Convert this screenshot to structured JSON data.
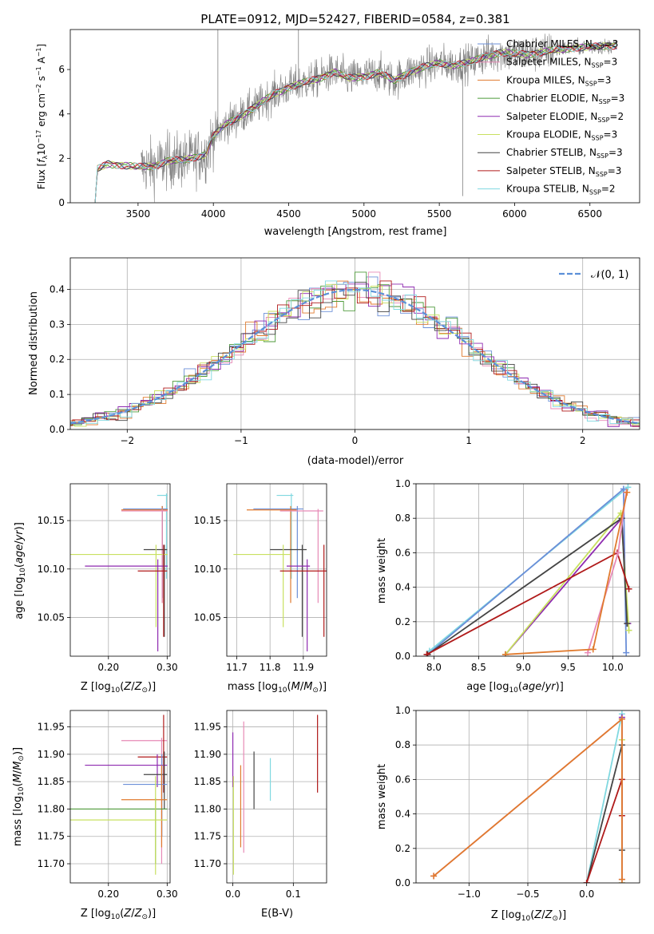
{
  "colors": {
    "Chabrier MILES": "#6b8fd8",
    "Salpeter MILES": "#e78ab6",
    "Kroupa MILES": "#e07a2e",
    "Chabrier ELODIE": "#4e9a3a",
    "Salpeter ELODIE": "#8e2ab0",
    "Kroupa ELODIE": "#c8e060",
    "Chabrier STELIB": "#444444",
    "Salpeter STELIB": "#b01a1a",
    "Kroupa STELIB": "#80d8e0",
    "data": "#808080",
    "normal": "#5b8fd8"
  },
  "chart_data": [
    {
      "id": "spectrum",
      "type": "line",
      "title": "PLATE=0912, MJD=52427, FIBERID=0584, z=0.381",
      "xlabel": "wavelength [Angstrom, rest frame]",
      "ylabel": "Flux [f_λ10⁻¹⁷ erg cm⁻² s⁻¹ A⁻¹]",
      "xlim": [
        3050,
        6830
      ],
      "ylim": [
        0,
        7.8
      ],
      "xticks": [
        3500,
        4000,
        4500,
        5000,
        5500,
        6000,
        6500
      ],
      "yticks": [
        0,
        2,
        4,
        6
      ],
      "legend_position": "top-right",
      "legend": [
        {
          "model": "Chabrier MILES",
          "pre": "Chabrier MILES, N",
          "sub": "SSP",
          "post": "=3"
        },
        {
          "model": "Salpeter MILES",
          "pre": "Salpeter MILES, N",
          "sub": "SSP",
          "post": "=3"
        },
        {
          "model": "Kroupa MILES",
          "pre": "Kroupa MILES, N",
          "sub": "SSP",
          "post": "=3"
        },
        {
          "model": "Chabrier ELODIE",
          "pre": "Chabrier ELODIE, N",
          "sub": "SSP",
          "post": "=3"
        },
        {
          "model": "Salpeter ELODIE",
          "pre": "Salpeter ELODIE, N",
          "sub": "SSP",
          "post": "=2"
        },
        {
          "model": "Kroupa ELODIE",
          "pre": "Kroupa ELODIE, N",
          "sub": "SSP",
          "post": "=3"
        },
        {
          "model": "Chabrier STELIB",
          "pre": "Chabrier STELIB, N",
          "sub": "SSP",
          "post": "=3"
        },
        {
          "model": "Salpeter STELIB",
          "pre": "Salpeter STELIB, N",
          "sub": "SSP",
          "post": "=3"
        },
        {
          "model": "Kroupa STELIB",
          "pre": "Kroupa STELIB, N",
          "sub": "SSP",
          "post": "=2"
        }
      ],
      "continuum": [
        [
          3215,
          0
        ],
        [
          3230,
          1.5
        ],
        [
          3300,
          1.75
        ],
        [
          3400,
          1.7
        ],
        [
          3500,
          1.6
        ],
        [
          3600,
          1.65
        ],
        [
          3700,
          1.9
        ],
        [
          3800,
          1.9
        ],
        [
          3900,
          2.1
        ],
        [
          3950,
          2.2
        ],
        [
          4000,
          3.0
        ],
        [
          4100,
          3.6
        ],
        [
          4200,
          4.0
        ],
        [
          4300,
          4.4
        ],
        [
          4400,
          4.9
        ],
        [
          4500,
          5.2
        ],
        [
          4600,
          5.4
        ],
        [
          4700,
          5.6
        ],
        [
          4800,
          5.9
        ],
        [
          4900,
          5.6
        ],
        [
          5000,
          5.7
        ],
        [
          5100,
          5.85
        ],
        [
          5200,
          5.5
        ],
        [
          5300,
          5.9
        ],
        [
          5400,
          6.1
        ],
        [
          5500,
          6.3
        ],
        [
          5600,
          6.2
        ],
        [
          5700,
          6.3
        ],
        [
          5800,
          6.6
        ],
        [
          5900,
          6.75
        ],
        [
          6000,
          6.7
        ],
        [
          6100,
          6.7
        ],
        [
          6200,
          6.8
        ],
        [
          6300,
          6.9
        ],
        [
          6400,
          7.0
        ],
        [
          6500,
          7.0
        ],
        [
          6600,
          7.05
        ],
        [
          6680,
          7.1
        ]
      ],
      "data_range": [
        3520,
        6260
      ],
      "spikes": [
        [
          4030,
          7.8
        ],
        [
          4565,
          7.8
        ],
        [
          5655,
          0.3
        ]
      ]
    },
    {
      "id": "residuals",
      "type": "histogram",
      "xlabel": "(data-model)/error",
      "ylabel": "Normed distribution",
      "xlim": [
        -2.5,
        2.5
      ],
      "ylim": [
        0,
        0.49
      ],
      "xticks": [
        -2,
        -1,
        0,
        1,
        2
      ],
      "yticks": [
        0.0,
        0.1,
        0.2,
        0.3,
        0.4
      ],
      "grid": true,
      "legend_position": "top-right",
      "normal_label": "𝒩(0, 1)",
      "bin_width": 0.1
    },
    {
      "id": "age_vs_Z",
      "type": "errorbar",
      "xlabel": "Z [log₁₀(Z/Z⊙)]",
      "ylabel": "age  [log₁₀(age/yr)]",
      "xlim": [
        0.135,
        0.305
      ],
      "ylim": [
        10.01,
        10.188
      ],
      "xticks": [
        0.2,
        0.3
      ],
      "yticks": [
        10.05,
        10.1,
        10.15
      ],
      "grid": true,
      "points": [
        {
          "model": "Kroupa STELIB",
          "xlo": 0.283,
          "xhi": 0.301,
          "y": 10.176,
          "ylo": 10.09,
          "yhi": 10.178
        },
        {
          "model": "Chabrier MILES",
          "xlo": 0.225,
          "xhi": 0.301,
          "y": 10.162,
          "ylo": 10.07,
          "yhi": 10.165
        },
        {
          "model": "Kroupa MILES",
          "xlo": 0.222,
          "xhi": 0.301,
          "y": 10.161,
          "ylo": 10.065,
          "yhi": 10.165
        },
        {
          "model": "Salpeter MILES",
          "xlo": 0.222,
          "xhi": 0.301,
          "y": 10.16,
          "ylo": 10.065,
          "yhi": 10.162
        },
        {
          "model": "Chabrier STELIB",
          "xlo": 0.26,
          "xhi": 0.3,
          "y": 10.12,
          "ylo": 10.03,
          "yhi": 10.125
        },
        {
          "model": "Kroupa ELODIE",
          "xlo": 0.135,
          "xhi": 0.301,
          "y": 10.115,
          "ylo": 10.04,
          "yhi": 10.125
        },
        {
          "model": "Salpeter ELODIE",
          "xlo": 0.16,
          "xhi": 0.301,
          "y": 10.103,
          "ylo": 10.015,
          "yhi": 10.11
        },
        {
          "model": "Salpeter STELIB",
          "xlo": 0.25,
          "xhi": 0.3,
          "y": 10.098,
          "ylo": 10.03,
          "yhi": 10.125
        }
      ]
    },
    {
      "id": "age_vs_mass",
      "type": "errorbar",
      "xlabel": "mass [log₁₀(M/M⊙)]",
      "ylabel": "",
      "xlim": [
        11.67,
        11.97
      ],
      "ylim": [
        10.01,
        10.188
      ],
      "xticks": [
        11.7,
        11.8,
        11.9
      ],
      "yticks": [
        10.05,
        10.1,
        10.15
      ],
      "grid": true,
      "points": [
        {
          "model": "Kroupa STELIB",
          "xlo": 11.82,
          "xhi": 11.87,
          "y": 10.176,
          "ylo": 10.09,
          "yhi": 10.178
        },
        {
          "model": "Chabrier MILES",
          "xlo": 11.75,
          "xhi": 11.9,
          "y": 10.162,
          "ylo": 10.07,
          "yhi": 10.165
        },
        {
          "model": "Kroupa MILES",
          "xlo": 11.73,
          "xhi": 11.88,
          "y": 10.161,
          "ylo": 10.065,
          "yhi": 10.165
        },
        {
          "model": "Salpeter MILES",
          "xlo": 11.83,
          "xhi": 11.96,
          "y": 10.16,
          "ylo": 10.065,
          "yhi": 10.162
        },
        {
          "model": "Chabrier STELIB",
          "xlo": 11.8,
          "xhi": 11.91,
          "y": 10.12,
          "ylo": 10.03,
          "yhi": 10.125
        },
        {
          "model": "Kroupa ELODIE",
          "xlo": 11.69,
          "xhi": 11.86,
          "y": 10.115,
          "ylo": 10.04,
          "yhi": 10.125
        },
        {
          "model": "Salpeter ELODIE",
          "xlo": 11.85,
          "xhi": 11.92,
          "y": 10.103,
          "ylo": 10.015,
          "yhi": 10.11
        },
        {
          "model": "Salpeter STELIB",
          "xlo": 11.83,
          "xhi": 11.98,
          "y": 10.098,
          "ylo": 10.03,
          "yhi": 10.125
        }
      ]
    },
    {
      "id": "weight_vs_age",
      "type": "line",
      "xlabel": "age  [log₁₀(age/yr)]",
      "ylabel": "mass weight",
      "xlim": [
        7.8,
        10.3
      ],
      "ylim": [
        0,
        1.0
      ],
      "xticks": [
        8.0,
        8.5,
        9.0,
        9.5,
        10.0
      ],
      "yticks": [
        0.0,
        0.2,
        0.4,
        0.6,
        0.8,
        1.0
      ],
      "grid": true,
      "series": [
        {
          "model": "Kroupa STELIB",
          "pts": [
            [
              7.95,
              0.03
            ],
            [
              10.17,
              0.98
            ]
          ]
        },
        {
          "model": "Chabrier MILES",
          "pts": [
            [
              7.93,
              0.01
            ],
            [
              10.12,
              0.97
            ],
            [
              10.15,
              0.02
            ]
          ]
        },
        {
          "model": "Salpeter ELODIE",
          "pts": [
            [
              8.8,
              0.01
            ],
            [
              10.1,
              0.8
            ],
            [
              10.17,
              0.19
            ]
          ]
        },
        {
          "model": "Kroupa ELODIE",
          "pts": [
            [
              8.8,
              0.01
            ],
            [
              10.09,
              0.83
            ],
            [
              10.18,
              0.15
            ]
          ]
        },
        {
          "model": "Chabrier STELIB",
          "pts": [
            [
              7.93,
              0.01
            ],
            [
              10.1,
              0.8
            ],
            [
              10.16,
              0.19
            ]
          ]
        },
        {
          "model": "Salpeter STELIB",
          "pts": [
            [
              7.92,
              0.01
            ],
            [
              10.05,
              0.6
            ],
            [
              10.18,
              0.39
            ]
          ]
        },
        {
          "model": "Salpeter MILES",
          "pts": [
            [
              9.72,
              0.02
            ],
            [
              10.06,
              0.6
            ],
            [
              10.15,
              0.95
            ]
          ]
        },
        {
          "model": "Kroupa MILES",
          "pts": [
            [
              8.8,
              0.01
            ],
            [
              9.78,
              0.04
            ],
            [
              10.16,
              0.95
            ]
          ]
        }
      ]
    },
    {
      "id": "mass_vs_Z",
      "type": "errorbar",
      "xlabel": "Z [log₁₀(Z/Z⊙)]",
      "ylabel": "mass [log₁₀(M/M⊙)]",
      "xlim": [
        0.135,
        0.305
      ],
      "ylim": [
        11.665,
        11.98
      ],
      "xticks": [
        0.2,
        0.3
      ],
      "yticks": [
        11.7,
        11.75,
        11.8,
        11.85,
        11.9,
        11.95
      ],
      "grid": true,
      "points": [
        {
          "model": "Salpeter MILES",
          "xlo": 0.222,
          "xhi": 0.3,
          "y": 11.925,
          "ylo": 11.7,
          "yhi": 11.93
        },
        {
          "model": "Salpeter STELIB",
          "xlo": 0.25,
          "xhi": 0.3,
          "y": 11.895,
          "ylo": 11.83,
          "yhi": 11.972
        },
        {
          "model": "Salpeter ELODIE",
          "xlo": 0.16,
          "xhi": 0.3,
          "y": 11.88,
          "ylo": 11.84,
          "yhi": 11.9
        },
        {
          "model": "Chabrier STELIB",
          "xlo": 0.26,
          "xhi": 0.3,
          "y": 11.863,
          "ylo": 11.8,
          "yhi": 11.905
        },
        {
          "model": "Chabrier MILES",
          "xlo": 0.225,
          "xhi": 0.3,
          "y": 11.845,
          "ylo": 11.75,
          "yhi": 11.9
        },
        {
          "model": "Kroupa MILES",
          "xlo": 0.222,
          "xhi": 0.3,
          "y": 11.817,
          "ylo": 11.73,
          "yhi": 11.88
        },
        {
          "model": "Chabrier ELODIE",
          "xlo": 0.135,
          "xhi": 0.3,
          "y": 11.8,
          "ylo": 11.7,
          "yhi": 11.82
        },
        {
          "model": "Kroupa ELODIE",
          "xlo": 0.135,
          "xhi": 0.3,
          "y": 11.78,
          "ylo": 11.68,
          "yhi": 11.86
        }
      ]
    },
    {
      "id": "mass_vs_ebv",
      "type": "errorbar",
      "xlabel": "E(B-V)",
      "ylabel": "",
      "xlim": [
        -0.01,
        0.155
      ],
      "ylim": [
        11.665,
        11.98
      ],
      "xticks": [
        0.0,
        0.1
      ],
      "yticks": [
        11.7,
        11.75,
        11.8,
        11.85,
        11.9,
        11.95
      ],
      "grid": true,
      "points": [
        {
          "model": "Salpeter ELODIE",
          "x": 0.0,
          "ylo": 11.84,
          "yhi": 11.94
        },
        {
          "model": "Kroupa ELODIE",
          "x": 0.001,
          "ylo": 11.68,
          "yhi": 11.86
        },
        {
          "model": "Kroupa MILES",
          "x": 0.013,
          "ylo": 11.73,
          "yhi": 11.88
        },
        {
          "model": "Salpeter MILES",
          "x": 0.018,
          "ylo": 11.72,
          "yhi": 11.96
        },
        {
          "model": "Chabrier STELIB",
          "x": 0.035,
          "ylo": 11.8,
          "yhi": 11.905
        },
        {
          "model": "Kroupa STELIB",
          "x": 0.062,
          "ylo": 11.815,
          "yhi": 11.893
        },
        {
          "model": "Salpeter STELIB",
          "x": 0.14,
          "ylo": 11.83,
          "yhi": 11.972
        }
      ]
    },
    {
      "id": "weight_vs_Z",
      "type": "line",
      "xlabel": "Z [log₁₀(Z/Z⊙)]",
      "ylabel": "mass weight",
      "xlim": [
        -1.45,
        0.45
      ],
      "ylim": [
        0,
        1.0
      ],
      "xticks": [
        -1.0,
        -0.5,
        0.0
      ],
      "yticks": [
        0.0,
        0.2,
        0.4,
        0.6,
        0.8,
        1.0
      ],
      "grid": true,
      "series": [
        {
          "model": "Kroupa STELIB",
          "pts": [
            [
              0.0,
              0.0
            ],
            [
              0.3,
              0.98
            ]
          ]
        },
        {
          "model": "Salpeter ELODIE",
          "pts": [
            [
              0.3,
              0.0
            ],
            [
              0.3,
              0.96
            ]
          ]
        },
        {
          "model": "Kroupa ELODIE",
          "pts": [
            [
              0.3,
              0.0
            ],
            [
              0.3,
              0.83
            ]
          ]
        },
        {
          "model": "Chabrier STELIB",
          "pts": [
            [
              0.0,
              0.0
            ],
            [
              0.3,
              0.8
            ],
            [
              0.3,
              0.19
            ]
          ]
        },
        {
          "model": "Salpeter STELIB",
          "pts": [
            [
              0.0,
              0.0
            ],
            [
              0.3,
              0.6
            ],
            [
              0.3,
              0.39
            ]
          ]
        },
        {
          "model": "Salpeter MILES",
          "pts": [
            [
              -1.3,
              0.04
            ],
            [
              0.3,
              0.95
            ],
            [
              0.3,
              0.02
            ]
          ]
        },
        {
          "model": "Kroupa MILES",
          "pts": [
            [
              -1.3,
              0.04
            ],
            [
              0.3,
              0.95
            ],
            [
              0.3,
              0.02
            ]
          ]
        }
      ]
    }
  ]
}
